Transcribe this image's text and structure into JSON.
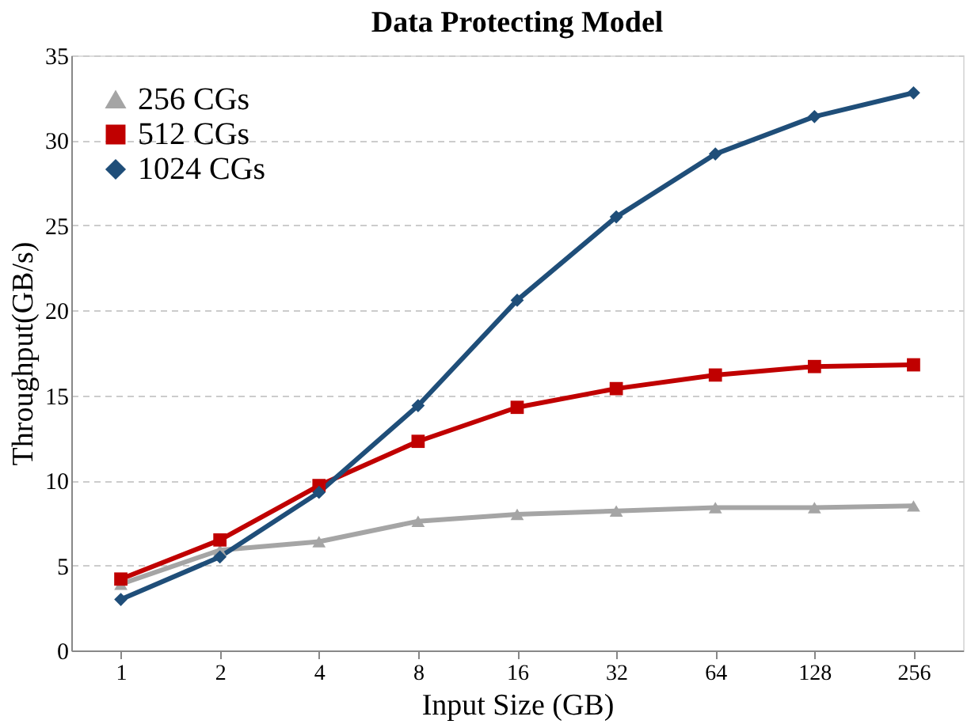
{
  "chart_data": {
    "type": "line",
    "title": "Data Protecting Model",
    "xlabel": "Input Size (GB)",
    "ylabel": "Throughput(GB/s)",
    "categories": [
      "1",
      "2",
      "4",
      "8",
      "16",
      "32",
      "64",
      "128",
      "256"
    ],
    "series": [
      {
        "name": "256 CGs",
        "color": "#a5a5a5",
        "marker": "triangle",
        "values": [
          3.9,
          5.9,
          6.4,
          7.6,
          8.0,
          8.2,
          8.4,
          8.4,
          8.5
        ]
      },
      {
        "name": "512 CGs",
        "color": "#c00000",
        "marker": "square",
        "values": [
          4.2,
          6.5,
          9.7,
          12.3,
          14.3,
          15.4,
          16.2,
          16.7,
          16.8
        ]
      },
      {
        "name": "1024 CGs",
        "color": "#1f4e79",
        "marker": "diamond",
        "values": [
          3.0,
          5.5,
          9.3,
          14.4,
          20.6,
          25.5,
          29.2,
          31.4,
          32.8
        ]
      }
    ],
    "ylim": [
      0,
      35
    ],
    "yticks": [
      0,
      5,
      10,
      15,
      20,
      25,
      30,
      35
    ],
    "grid": "y",
    "legend": "top left",
    "line_style": "solid"
  }
}
